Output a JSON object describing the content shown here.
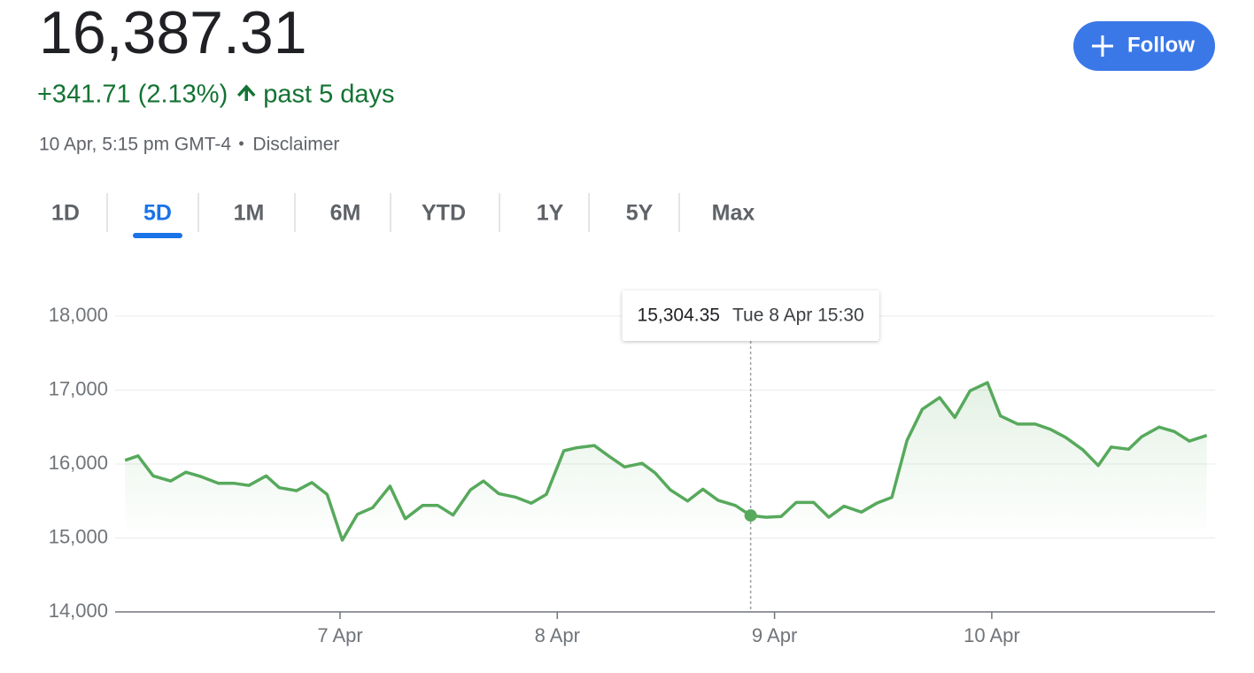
{
  "header": {
    "price": "16,387.31",
    "change": "+341.71 (2.13%)",
    "period": "past 5 days",
    "timestamp": "10 Apr, 5:15 pm GMT-4",
    "separator": "•",
    "disclaimer": "Disclaimer",
    "follow_button": "Follow"
  },
  "tabs": [
    {
      "label": "1D",
      "active": false
    },
    {
      "label": "5D",
      "active": true
    },
    {
      "label": "1M",
      "active": false
    },
    {
      "label": "6M",
      "active": false
    },
    {
      "label": "YTD",
      "active": false
    },
    {
      "label": "1Y",
      "active": false
    },
    {
      "label": "5Y",
      "active": false
    },
    {
      "label": "Max",
      "active": false
    }
  ],
  "chart_data": {
    "type": "line",
    "color": "#57a95c",
    "grid": true,
    "x": [
      6.01,
      6.07,
      6.14,
      6.22,
      6.29,
      6.36,
      6.44,
      6.51,
      6.58,
      6.66,
      6.72,
      6.8,
      6.87,
      6.94,
      7.01,
      7.08,
      7.15,
      7.23,
      7.3,
      7.38,
      7.45,
      7.52,
      7.6,
      7.66,
      7.73,
      7.81,
      7.88,
      7.95,
      8.03,
      8.09,
      8.17,
      8.24,
      8.31,
      8.39,
      8.45,
      8.52,
      8.6,
      8.67,
      8.74,
      8.82,
      8.89,
      8.96,
      9.03,
      9.1,
      9.18,
      9.25,
      9.32,
      9.4,
      9.47,
      9.54,
      9.61,
      9.68,
      9.76,
      9.83,
      9.9,
      9.98,
      10.04,
      10.12,
      10.2,
      10.27,
      10.34,
      10.42,
      10.49,
      10.55,
      10.63,
      10.69,
      10.77,
      10.84,
      10.91,
      10.99
    ],
    "values": [
      16050,
      16110,
      15840,
      15770,
      15890,
      15830,
      15740,
      15740,
      15710,
      15840,
      15680,
      15640,
      15750,
      15590,
      14970,
      15320,
      15410,
      15700,
      15260,
      15440,
      15440,
      15310,
      15650,
      15770,
      15600,
      15550,
      15470,
      15590,
      16180,
      16220,
      16250,
      16100,
      15960,
      16010,
      15880,
      15650,
      15500,
      15660,
      15510,
      15440,
      15304.35,
      15280,
      15290,
      15480,
      15480,
      15280,
      15430,
      15350,
      15470,
      15550,
      16320,
      16740,
      16900,
      16630,
      16990,
      17100,
      16650,
      16540,
      16540,
      16470,
      16360,
      16190,
      15980,
      16230,
      16200,
      16370,
      16500,
      16440,
      16310,
      16387.31
    ],
    "xlim": [
      6,
      11
    ],
    "xticks": [
      {
        "value": 7,
        "label": "7 Apr"
      },
      {
        "value": 8,
        "label": "8 Apr"
      },
      {
        "value": 9,
        "label": "9 Apr"
      },
      {
        "value": 10,
        "label": "10 Apr"
      }
    ],
    "ylim": [
      14000,
      18000
    ],
    "yticks": [
      {
        "value": 14000,
        "label": "14,000"
      },
      {
        "value": 15000,
        "label": "15,000"
      },
      {
        "value": 16000,
        "label": "16,000"
      },
      {
        "value": 17000,
        "label": "17,000"
      },
      {
        "value": 18000,
        "label": "18,000"
      }
    ],
    "tooltip": {
      "value": 15304.35,
      "label": "15,304.35",
      "date": "Tue 8 Apr 15:30"
    }
  }
}
